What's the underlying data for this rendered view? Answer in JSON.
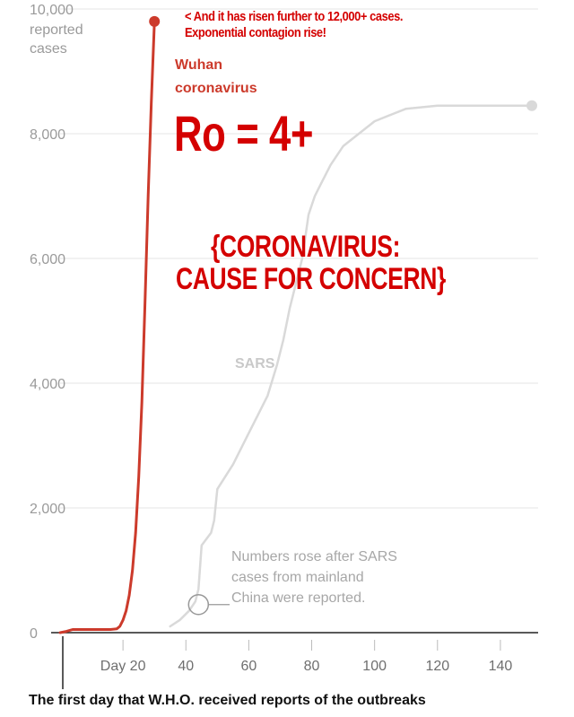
{
  "chart_data": {
    "type": "line",
    "title": "",
    "xlabel": "The first day that W.H.O. received reports of the outbreaks",
    "ylabel": "reported cases",
    "ylim": [
      0,
      10000
    ],
    "xlim": [
      0,
      152
    ],
    "y_ticks": [
      {
        "value": 0,
        "label": "0"
      },
      {
        "value": 2000,
        "label": "2,000"
      },
      {
        "value": 4000,
        "label": "4,000"
      },
      {
        "value": 6000,
        "label": "6,000"
      },
      {
        "value": 8000,
        "label": "8,000"
      },
      {
        "value": 10000,
        "label": "10,000"
      }
    ],
    "y_top_label_lines": [
      "reported",
      "cases"
    ],
    "x_ticks": [
      {
        "value": 20,
        "label": "Day 20"
      },
      {
        "value": 40,
        "label": "40"
      },
      {
        "value": 60,
        "label": "60"
      },
      {
        "value": 80,
        "label": "80"
      },
      {
        "value": 100,
        "label": "100"
      },
      {
        "value": 120,
        "label": "120"
      },
      {
        "value": 140,
        "label": "140"
      }
    ],
    "grid": true,
    "series": [
      {
        "name": "Wuhan coronavirus",
        "label_lines": [
          "Wuhan",
          "coronavirus"
        ],
        "color": "#cc3a2b",
        "end_marker": true,
        "x": [
          0,
          2,
          4,
          8,
          12,
          16,
          18,
          19,
          20,
          21,
          22,
          23,
          24,
          25,
          26,
          27,
          28,
          29,
          30
        ],
        "y": [
          0,
          20,
          50,
          50,
          50,
          50,
          60,
          100,
          200,
          350,
          600,
          1000,
          1600,
          2500,
          3700,
          5300,
          7000,
          8500,
          9800
        ]
      },
      {
        "name": "SARS",
        "label_lines": [
          "SARS"
        ],
        "color": "#d9d9d9",
        "end_marker": true,
        "x": [
          35,
          38,
          41,
          43,
          44,
          45,
          48,
          49,
          50,
          55,
          60,
          63,
          66,
          69,
          71,
          73,
          75,
          77,
          79,
          81,
          83,
          86,
          90,
          95,
          100,
          105,
          110,
          120,
          130,
          140,
          150
        ],
        "y": [
          100,
          200,
          350,
          500,
          700,
          1400,
          1600,
          1800,
          2300,
          2700,
          3200,
          3500,
          3800,
          4300,
          4700,
          5200,
          5600,
          6000,
          6700,
          7000,
          7200,
          7500,
          7800,
          8000,
          8200,
          8300,
          8400,
          8450,
          8450,
          8450,
          8450
        ]
      }
    ],
    "annotations": {
      "sars_note_lines": [
        "Numbers rose after SARS",
        "cases from mainland",
        "China were reported."
      ],
      "sars_note_point": {
        "x": 44,
        "y": 450
      }
    }
  },
  "overlay": {
    "note_line1": "< And it has risen further to 12,000+ cases.",
    "note_line2": "Exponential contagion rise!",
    "ro_text": "Ro = 4+",
    "big_line1": "{CORONAVIRUS:",
    "big_line2": "CAUSE FOR CONCERN}"
  },
  "footer_text": "The first day that W.H.O. received reports of the outbreaks",
  "colors": {
    "red": "#cc3a2b",
    "overlay_red": "#d40000",
    "grey_line": "#d9d9d9",
    "grid": "#e6e6e6",
    "axis": "#222222"
  }
}
